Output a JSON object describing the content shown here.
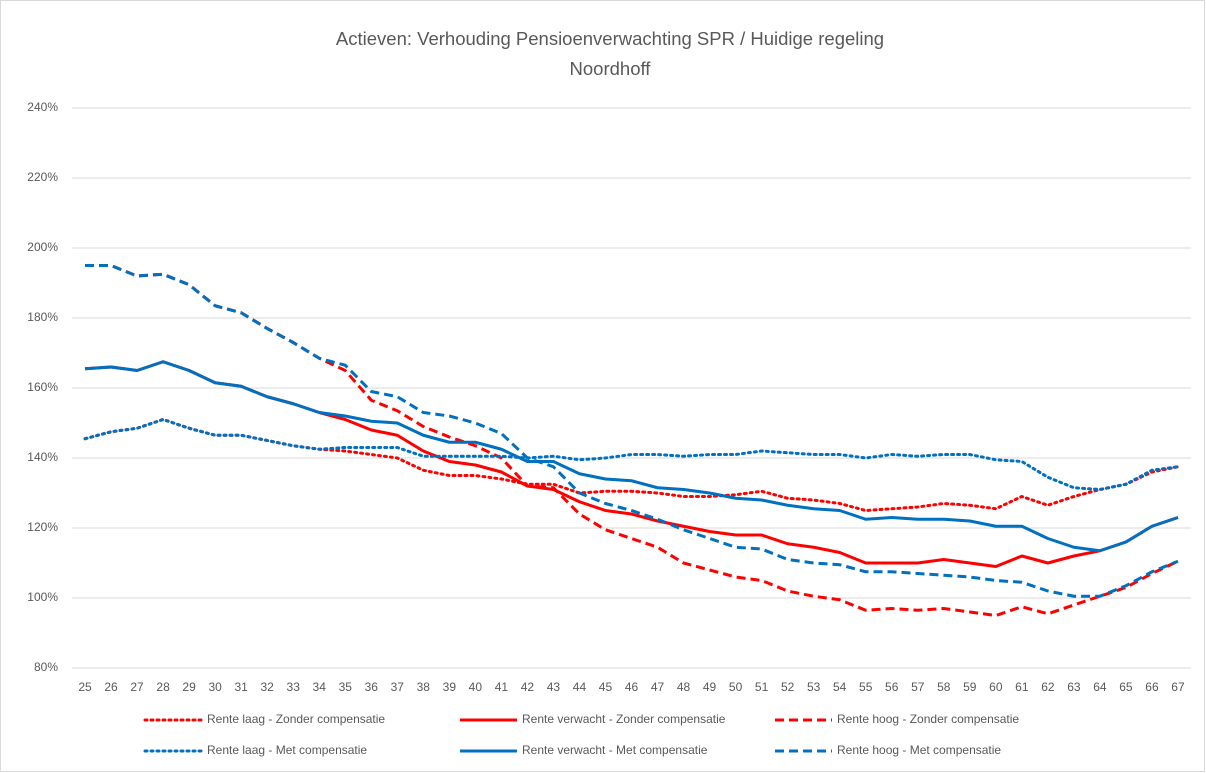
{
  "chart_data": {
    "type": "line",
    "title": "Actieven: Verhouding Pensioenverwachting SPR / Huidige regeling",
    "subtitle": "Noordhoff",
    "x": [
      25,
      26,
      27,
      28,
      29,
      30,
      31,
      32,
      33,
      34,
      35,
      36,
      37,
      38,
      39,
      40,
      41,
      42,
      43,
      44,
      45,
      46,
      47,
      48,
      49,
      50,
      51,
      52,
      53,
      54,
      55,
      56,
      57,
      58,
      59,
      60,
      61,
      62,
      63,
      64,
      65,
      66,
      67
    ],
    "xlim": [
      24.5,
      67.5
    ],
    "xticks": [
      25,
      26,
      27,
      28,
      29,
      30,
      31,
      32,
      33,
      34,
      35,
      36,
      37,
      38,
      39,
      40,
      41,
      42,
      43,
      44,
      45,
      46,
      47,
      48,
      49,
      50,
      51,
      52,
      53,
      54,
      55,
      56,
      57,
      58,
      59,
      60,
      61,
      62,
      63,
      64,
      65,
      66,
      67
    ],
    "ylim": [
      80,
      240
    ],
    "yticks": [
      {
        "value": 80,
        "label": "80%"
      },
      {
        "value": 100,
        "label": "100%"
      },
      {
        "value": 120,
        "label": "120%"
      },
      {
        "value": 140,
        "label": "140%"
      },
      {
        "value": 160,
        "label": "160%"
      },
      {
        "value": 180,
        "label": "180%"
      },
      {
        "value": 200,
        "label": "200%"
      },
      {
        "value": 220,
        "label": "220%"
      },
      {
        "value": 240,
        "label": "240%"
      }
    ],
    "grid": true,
    "legend": "bottom",
    "series": [
      {
        "name": "Rente laag - Zonder compensatie",
        "color": "#ff0000",
        "dash": "dotted",
        "values": [
          145.5,
          147.5,
          148.5,
          151,
          148.5,
          146.5,
          146.5,
          145,
          143.5,
          142.5,
          142,
          141,
          140,
          136.5,
          135,
          135,
          134,
          132.5,
          132.5,
          130,
          130.5,
          130.5,
          130,
          129,
          129,
          129.5,
          130.5,
          128.5,
          128,
          127,
          125,
          125.5,
          126,
          127,
          126.5,
          125.5,
          129,
          126.5,
          129,
          131,
          132.5,
          136,
          137.5
        ]
      },
      {
        "name": "Rente verwacht - Zonder compensatie",
        "color": "#ff0000",
        "dash": "solid",
        "values": [
          165.5,
          166,
          165,
          167.5,
          165,
          161.5,
          160.5,
          157.5,
          155.5,
          153,
          151,
          148,
          146.5,
          142,
          139,
          138,
          136,
          132,
          131,
          127.5,
          125,
          124,
          122,
          120.5,
          119,
          118,
          118,
          115.5,
          114.5,
          113,
          110,
          110,
          110,
          111,
          110,
          109,
          112,
          110,
          112,
          113.5,
          116,
          120.5,
          123
        ]
      },
      {
        "name": "Rente hoog - Zonder compensatie",
        "color": "#ff0000",
        "dash": "dashed",
        "values": [
          195,
          195,
          192,
          192.5,
          189.5,
          183.5,
          181.5,
          177,
          173,
          168.5,
          165,
          156.5,
          153.5,
          149,
          146,
          143.5,
          140,
          132,
          131.5,
          124,
          119.5,
          117,
          114.5,
          110,
          108,
          106,
          105,
          102,
          100.5,
          99.5,
          96.5,
          97,
          96.5,
          97,
          96,
          95,
          97.5,
          95.5,
          98,
          100.5,
          103,
          107,
          110.5
        ]
      },
      {
        "name": "Rente laag - Met compensatie",
        "color": "#0070c0",
        "dash": "dotted",
        "values": [
          145.5,
          147.5,
          148.5,
          151,
          148.5,
          146.5,
          146.5,
          145,
          143.5,
          142.5,
          143,
          143,
          143,
          140.5,
          140.5,
          140.5,
          140.5,
          140,
          140.5,
          139.5,
          140,
          141,
          141,
          140.5,
          141,
          141,
          142,
          141.5,
          141,
          141,
          140,
          141,
          140.5,
          141,
          141,
          139.5,
          139,
          134.5,
          131.5,
          131,
          132.5,
          136.5,
          137.5
        ]
      },
      {
        "name": "Rente verwacht - Met compensatie",
        "color": "#0070c0",
        "dash": "solid",
        "values": [
          165.5,
          166,
          165,
          167.5,
          165,
          161.5,
          160.5,
          157.5,
          155.5,
          153,
          152,
          150.5,
          150,
          146.5,
          144.5,
          144.5,
          142.5,
          139,
          139,
          135.5,
          134,
          133.5,
          131.5,
          131,
          130,
          128.5,
          128,
          126.5,
          125.5,
          125,
          122.5,
          123,
          122.5,
          122.5,
          122,
          120.5,
          120.5,
          117,
          114.5,
          113.5,
          116,
          120.5,
          123
        ]
      },
      {
        "name": "Rente hoog - Met compensatie",
        "color": "#0070c0",
        "dash": "dashed",
        "values": [
          195,
          195,
          192,
          192.5,
          189.5,
          183.5,
          181.5,
          177,
          173,
          168.5,
          166.5,
          159,
          157.5,
          153,
          152,
          150,
          147,
          140,
          137.5,
          130,
          127,
          125,
          122.5,
          119.5,
          117,
          114.5,
          114,
          111,
          110,
          109.5,
          107.5,
          107.5,
          107,
          106.5,
          106,
          105,
          104.5,
          102,
          100.5,
          100.5,
          103.5,
          107.5,
          110.5
        ]
      }
    ]
  }
}
